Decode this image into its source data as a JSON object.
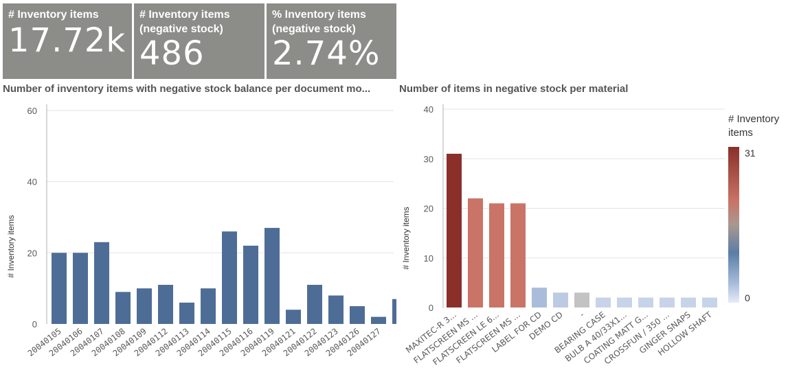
{
  "kpis": [
    {
      "label_line1": "# Inventory items",
      "label_line2": "",
      "value": "17.72k"
    },
    {
      "label_line1": "# Inventory items",
      "label_line2": "(negative stock)",
      "value": "486"
    },
    {
      "label_line1": "% Inventory items",
      "label_line2": "(negative stock)",
      "value": "2.74%"
    }
  ],
  "chart_data": [
    {
      "type": "bar",
      "title": "Number of inventory items with negative stock balance per document mo...",
      "ylabel": "# Inventory items",
      "xlabel": "",
      "ylim": [
        0,
        60
      ],
      "yticks": [
        0,
        20,
        40,
        60
      ],
      "grid": true,
      "categories": [
        "20040105",
        "20040106",
        "20040107",
        "20040108",
        "20040109",
        "20040112",
        "20040113",
        "20040114",
        "20040115",
        "20040116",
        "20040119",
        "20040121",
        "20040122",
        "20040123",
        "20040126",
        "20040127",
        ""
      ],
      "values": [
        20,
        20,
        23,
        9,
        10,
        11,
        6,
        10,
        26,
        22,
        27,
        4,
        11,
        8,
        5,
        2,
        7
      ],
      "bar_color": "#4e6d96"
    },
    {
      "type": "bar",
      "title": "Number of items in negative stock per material",
      "ylabel": "# Inventory items",
      "xlabel": "",
      "ylim": [
        0,
        40
      ],
      "yticks": [
        0,
        10,
        20,
        30,
        40
      ],
      "grid": true,
      "categories": [
        "MAXITEC-R 3...",
        "FLATSCREEN MS ...",
        "FLATSCREEN LE 6...",
        "FLATSCREEN MS ...",
        "LABEL FOR CD",
        "DEMO CD",
        "-",
        "BEARING CASE",
        "BULB A 40/33X1...",
        "COATING MATT G...",
        "CROSSFUN / 350 ...",
        "GINGER SNAPS",
        "HOLLOW SHAFT"
      ],
      "values": [
        31,
        22,
        21,
        21,
        4,
        3,
        3,
        2,
        2,
        2,
        2,
        2,
        2
      ],
      "colors": [
        "#8a2f2a",
        "#c97466",
        "#c97466",
        "#c97466",
        "#a9bddb",
        "#bccbe2",
        "#c3c3c3",
        "#c7d3e8",
        "#c7d3e8",
        "#c7d3e8",
        "#c7d3e8",
        "#c7d3e8",
        "#c7d3e8"
      ],
      "legend": {
        "title_line1": "# Inventory",
        "title_line2": "items",
        "max_label": "31",
        "min_label": "0",
        "placement": "right"
      }
    }
  ]
}
